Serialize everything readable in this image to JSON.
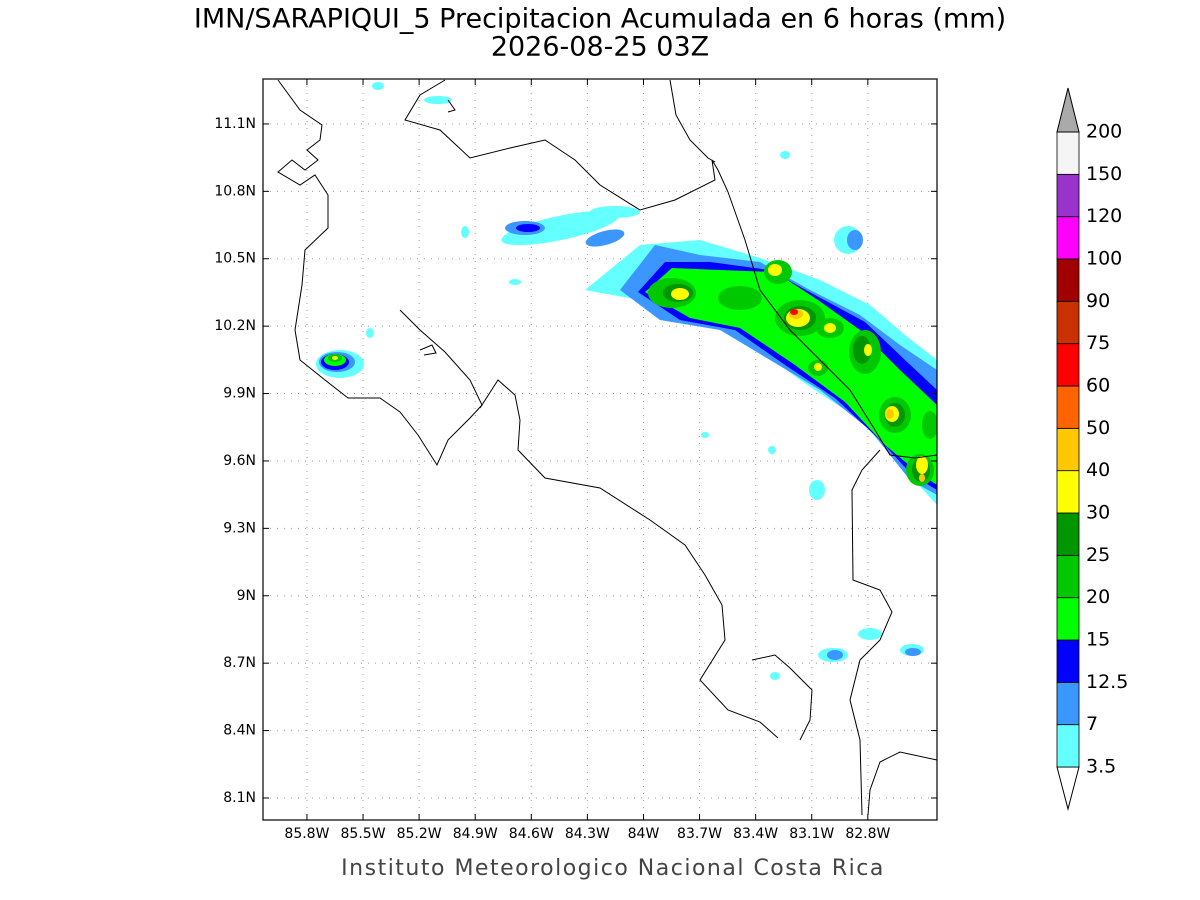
{
  "title": "IMN/SARAPIQUI_5 Precipitacion Acumulada en 6 horas (mm)",
  "subtitle": "2026-08-25 03Z",
  "footer": "Instituto Meteorologico Nacional Costa Rica",
  "map": {
    "xlim": [
      -86.035,
      -82.43
    ],
    "ylim": [
      8.002,
      11.3
    ],
    "xticks": [
      {
        "value": -85.8,
        "label": "85.8W"
      },
      {
        "value": -85.5,
        "label": "85.5W"
      },
      {
        "value": -85.2,
        "label": "85.2W"
      },
      {
        "value": -84.9,
        "label": "84.9W"
      },
      {
        "value": -84.6,
        "label": "84.6W"
      },
      {
        "value": -84.3,
        "label": "84.3W"
      },
      {
        "value": -84,
        "label": "84W"
      },
      {
        "value": -83.7,
        "label": "83.7W"
      },
      {
        "value": -83.4,
        "label": "83.4W"
      },
      {
        "value": -83.1,
        "label": "83.1W"
      },
      {
        "value": -82.8,
        "label": "82.8W"
      }
    ],
    "yticks": [
      {
        "value": 8.1,
        "label": "8.1N"
      },
      {
        "value": 8.4,
        "label": "8.4N"
      },
      {
        "value": 8.7,
        "label": "8.7N"
      },
      {
        "value": 9,
        "label": "9N"
      },
      {
        "value": 9.3,
        "label": "9.3N"
      },
      {
        "value": 9.6,
        "label": "9.6N"
      },
      {
        "value": 9.9,
        "label": "9.9N"
      },
      {
        "value": 10.2,
        "label": "10.2N"
      },
      {
        "value": 10.5,
        "label": "10.5N"
      },
      {
        "value": 10.8,
        "label": "10.8N"
      },
      {
        "value": 11.1,
        "label": "11.1N"
      }
    ],
    "grid": true
  },
  "colorbar": {
    "levels": [
      3.5,
      7,
      12.5,
      15,
      20,
      25,
      30,
      40,
      50,
      60,
      75,
      90,
      100,
      120,
      150,
      200
    ],
    "colors": [
      "#ffffff",
      "#64ffff",
      "#3c96ff",
      "#0000ff",
      "#00ff00",
      "#00c800",
      "#009600",
      "#ffff00",
      "#ffc800",
      "#ff6400",
      "#ff0000",
      "#c83200",
      "#a00000",
      "#ff00ff",
      "#9933cc",
      "#f5f5f5",
      "#aaaaaa"
    ]
  }
}
